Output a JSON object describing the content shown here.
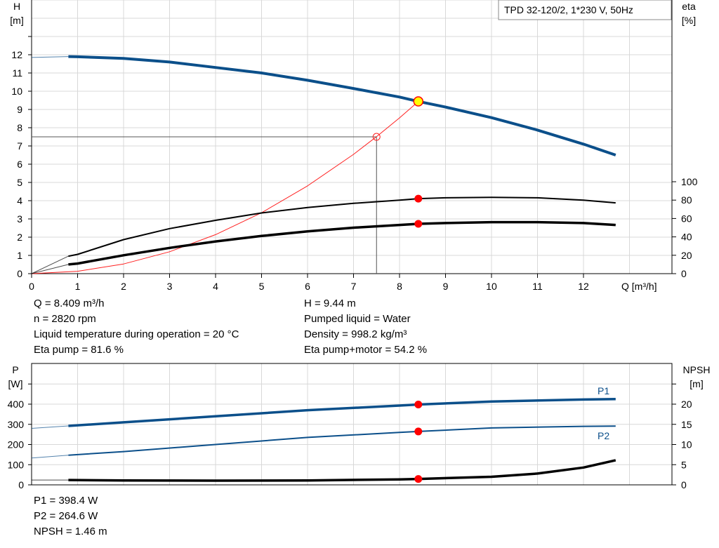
{
  "colors": {
    "head": "#0b4f8a",
    "efficiency": "#000000",
    "system": "#ff2020",
    "operating_point": "#ff0000",
    "duty_marker": "#ffff00",
    "grid": "#d8d8d8"
  },
  "chart_data": [
    {
      "type": "line",
      "title": "TPD 32-120/2, 1*230 V, 50Hz",
      "xlabel": "Q [m³/h]",
      "ylabel": "H\n[m]",
      "ylabel_parts": [
        "H",
        "[m]"
      ],
      "y2label_parts": [
        "eta",
        "[%]"
      ],
      "xlim": [
        0,
        13.8
      ],
      "ylim": [
        0,
        15
      ],
      "y2lim": [
        0,
        115
      ],
      "x_ticks": [
        0,
        1,
        2,
        3,
        4,
        5,
        6,
        7,
        8,
        9,
        10,
        11,
        12
      ],
      "y_ticks": [
        0,
        1,
        2,
        3,
        4,
        5,
        6,
        7,
        8,
        9,
        10,
        11,
        12
      ],
      "y2_ticks": [
        0,
        20,
        40,
        60,
        80,
        100
      ],
      "grid": true,
      "series": [
        {
          "key": "H",
          "axis": "left",
          "x": [
            0.8,
            1,
            2,
            3,
            4,
            5,
            6,
            7,
            8,
            8.409,
            9,
            10,
            11,
            12,
            12.7
          ],
          "y": [
            11.9,
            11.89,
            11.8,
            11.6,
            11.3,
            11.0,
            10.6,
            10.15,
            9.68,
            9.44,
            9.13,
            8.55,
            7.87,
            7.1,
            6.5
          ],
          "extension": {
            "x": [
              0,
              0.8
            ],
            "y": [
              11.85,
              11.9
            ]
          }
        },
        {
          "key": "eta_pump",
          "axis": "right",
          "x": [
            0.8,
            1,
            2,
            3,
            4,
            5,
            6,
            7,
            8,
            8.409,
            9,
            10,
            11,
            12,
            12.7
          ],
          "y": [
            19,
            21,
            37,
            49,
            58,
            66,
            72,
            76.5,
            80,
            81.6,
            82.5,
            83,
            82.5,
            80,
            77
          ],
          "extension": {
            "x": [
              0,
              0.8
            ],
            "y": [
              0,
              19
            ]
          }
        },
        {
          "key": "eta_pump_motor",
          "axis": "right",
          "x": [
            0.8,
            1,
            2,
            3,
            4,
            5,
            6,
            7,
            8,
            8.409,
            9,
            10,
            11,
            12,
            12.7
          ],
          "y": [
            10,
            11,
            20,
            28,
            35,
            41,
            46,
            50,
            53,
            54.2,
            55,
            56,
            56,
            55,
            53
          ],
          "extension": {
            "x": [
              0,
              0.8
            ],
            "y": [
              0,
              10
            ]
          }
        },
        {
          "key": "system_curve",
          "axis": "left",
          "x": [
            0,
            1,
            2,
            3,
            4,
            5,
            6,
            7,
            7.5,
            8,
            8.409
          ],
          "y": [
            0,
            0.13,
            0.53,
            1.2,
            2.14,
            3.34,
            4.81,
            6.54,
            7.51,
            8.54,
            9.44
          ]
        }
      ],
      "duty_point": {
        "Q": 8.409,
        "H": 9.44,
        "eta_pump": 81.6,
        "eta_pump_motor": 54.2
      },
      "reference_point": {
        "Q": 7.5,
        "H": 7.5
      }
    },
    {
      "type": "line",
      "ylabel_parts": [
        "P",
        "[W]"
      ],
      "y2label_parts": [
        "NPSH",
        "[m]"
      ],
      "xlim": [
        0,
        13.8
      ],
      "ylim": [
        0,
        600
      ],
      "y2lim": [
        0,
        30
      ],
      "y_ticks": [
        0,
        100,
        200,
        300,
        400,
        500
      ],
      "y_tick_labels": [
        "0",
        "100",
        "200",
        "300",
        "400",
        ""
      ],
      "y2_ticks": [
        0,
        5,
        10,
        15,
        20,
        25
      ],
      "y2_tick_labels": [
        "0",
        "5",
        "10",
        "15",
        "20",
        ""
      ],
      "grid": true,
      "series": [
        {
          "name": "P1",
          "axis": "left",
          "x": [
            0.8,
            2,
            4,
            6,
            8,
            8.409,
            10,
            12,
            12.7
          ],
          "y": [
            292,
            310,
            340,
            370,
            393,
            398.4,
            413,
            423,
            425
          ],
          "extension": {
            "x": [
              0,
              0.8
            ],
            "y": [
              280,
              292
            ]
          }
        },
        {
          "name": "P2",
          "axis": "left",
          "x": [
            0.8,
            2,
            4,
            6,
            8,
            8.409,
            10,
            12,
            12.7
          ],
          "y": [
            147,
            165,
            200,
            235,
            260,
            264.6,
            282,
            290,
            291
          ],
          "extension": {
            "x": [
              0,
              0.8
            ],
            "y": [
              133,
              147
            ]
          }
        },
        {
          "key": "NPSH",
          "axis": "right",
          "x": [
            0.8,
            2,
            4,
            6,
            8,
            8.409,
            10,
            11,
            12,
            12.7
          ],
          "y": [
            1.2,
            1.1,
            1.05,
            1.1,
            1.35,
            1.46,
            2.0,
            2.8,
            4.3,
            6.1
          ],
          "extension": {
            "x": [
              0,
              0.8
            ],
            "y": [
              1.2,
              1.2
            ]
          }
        }
      ],
      "duty_point": {
        "Q": 8.409,
        "P1": 398.4,
        "P2": 264.6,
        "NPSH": 1.46
      }
    }
  ],
  "info_top": {
    "left": [
      "Q = 8.409 m³/h",
      "n = 2820 rpm",
      "Liquid temperature during operation = 20 °C",
      "Eta pump = 81.6 %"
    ],
    "right": [
      "H = 9.44 m",
      "Pumped liquid = Water",
      "Density = 998.2 kg/m³",
      "Eta pump+motor = 54.2 %"
    ]
  },
  "info_bottom": [
    "P1 = 398.4 W",
    "P2 = 264.6 W",
    "NPSH = 1.46 m"
  ]
}
